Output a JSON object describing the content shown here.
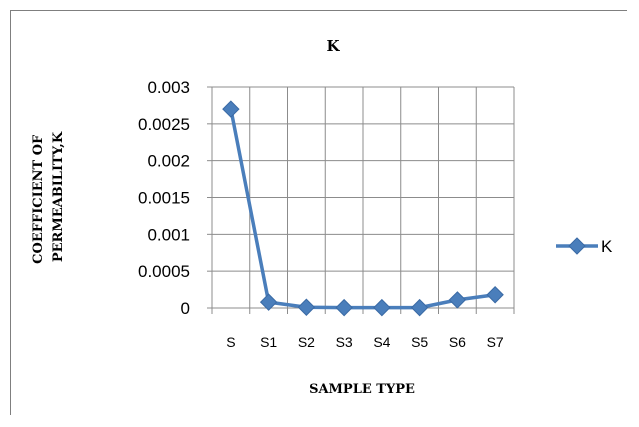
{
  "chart_data": {
    "type": "line",
    "title": "K",
    "xlabel": "SAMPLE TYPE",
    "ylabel": "COEFFICIENT OF PERMEABILITY,K",
    "ylabel_lines": [
      "COEFFICIENT OF",
      "PERMEABILITY,K"
    ],
    "categories": [
      "S",
      "S1",
      "S2",
      "S3",
      "S4",
      "S5",
      "S6",
      "S7"
    ],
    "ylim": [
      0,
      0.003
    ],
    "yticks": [
      "0",
      "0.0005",
      "0.001",
      "0.0015",
      "0.002",
      "0.0025",
      "0.003"
    ],
    "grid": true,
    "legend": "right",
    "series": [
      {
        "name": "K",
        "color": "#4a7ebb",
        "marker": "diamond",
        "values": [
          0.0027,
          8e-05,
          1e-05,
          5e-06,
          5e-06,
          5e-06,
          0.00011,
          0.00018
        ]
      }
    ]
  }
}
